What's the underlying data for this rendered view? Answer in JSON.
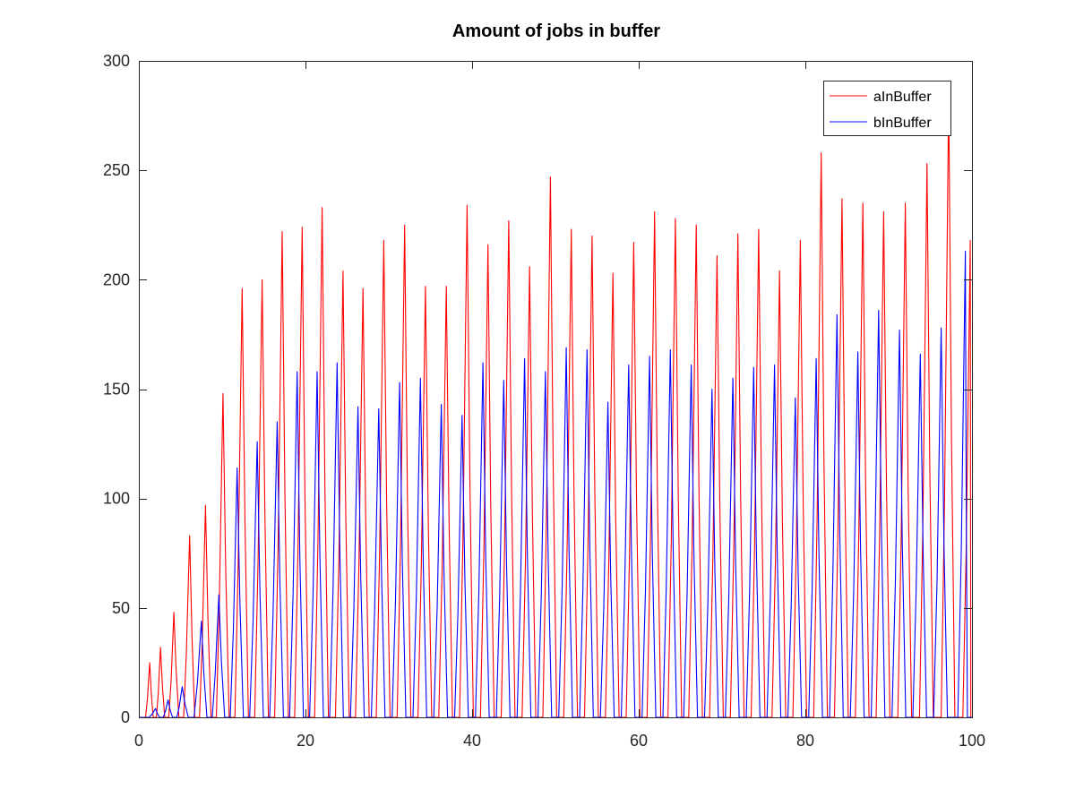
{
  "chart_data": {
    "type": "line",
    "title": "Amount of jobs in buffer",
    "xlabel": "",
    "ylabel": "",
    "xlim": [
      0,
      100
    ],
    "ylim": [
      0,
      300
    ],
    "x_ticks": [
      0,
      20,
      40,
      60,
      80,
      100
    ],
    "y_ticks": [
      0,
      50,
      100,
      150,
      200,
      250,
      300
    ],
    "grid": false,
    "legend": "top-right",
    "series": [
      {
        "name": "aInBuffer",
        "color": "#ff0000",
        "peaks": [
          {
            "x": 1.3,
            "y": 25
          },
          {
            "x": 2.6,
            "y": 32
          },
          {
            "x": 4.2,
            "y": 48
          },
          {
            "x": 6.1,
            "y": 83
          },
          {
            "x": 8.0,
            "y": 97
          },
          {
            "x": 10.1,
            "y": 148
          },
          {
            "x": 12.4,
            "y": 196
          },
          {
            "x": 14.8,
            "y": 200
          },
          {
            "x": 17.2,
            "y": 222
          },
          {
            "x": 19.6,
            "y": 224
          },
          {
            "x": 22.0,
            "y": 233
          },
          {
            "x": 24.5,
            "y": 204
          },
          {
            "x": 26.9,
            "y": 196
          },
          {
            "x": 29.4,
            "y": 218
          },
          {
            "x": 31.9,
            "y": 225
          },
          {
            "x": 34.4,
            "y": 197
          },
          {
            "x": 36.9,
            "y": 197
          },
          {
            "x": 39.4,
            "y": 234
          },
          {
            "x": 41.9,
            "y": 216
          },
          {
            "x": 44.4,
            "y": 227
          },
          {
            "x": 46.9,
            "y": 206
          },
          {
            "x": 49.4,
            "y": 247
          },
          {
            "x": 51.9,
            "y": 223
          },
          {
            "x": 54.4,
            "y": 220
          },
          {
            "x": 56.9,
            "y": 203
          },
          {
            "x": 59.4,
            "y": 217
          },
          {
            "x": 61.9,
            "y": 231
          },
          {
            "x": 64.4,
            "y": 228
          },
          {
            "x": 66.9,
            "y": 225
          },
          {
            "x": 69.4,
            "y": 211
          },
          {
            "x": 71.9,
            "y": 221
          },
          {
            "x": 74.4,
            "y": 223
          },
          {
            "x": 76.9,
            "y": 204
          },
          {
            "x": 79.4,
            "y": 218
          },
          {
            "x": 81.9,
            "y": 258
          },
          {
            "x": 84.4,
            "y": 237
          },
          {
            "x": 86.9,
            "y": 235
          },
          {
            "x": 89.4,
            "y": 231
          },
          {
            "x": 92.0,
            "y": 235
          },
          {
            "x": 94.6,
            "y": 253
          },
          {
            "x": 97.2,
            "y": 285
          },
          {
            "x": 99.8,
            "y": 218
          }
        ]
      },
      {
        "name": "bInBuffer",
        "color": "#0000ff",
        "peaks": [
          {
            "x": 2.0,
            "y": 4
          },
          {
            "x": 3.5,
            "y": 8
          },
          {
            "x": 5.2,
            "y": 14
          },
          {
            "x": 7.5,
            "y": 44
          },
          {
            "x": 9.6,
            "y": 56
          },
          {
            "x": 11.8,
            "y": 114
          },
          {
            "x": 14.2,
            "y": 126
          },
          {
            "x": 16.6,
            "y": 135
          },
          {
            "x": 19.0,
            "y": 158
          },
          {
            "x": 21.4,
            "y": 158
          },
          {
            "x": 23.8,
            "y": 162
          },
          {
            "x": 26.3,
            "y": 142
          },
          {
            "x": 28.8,
            "y": 141
          },
          {
            "x": 31.3,
            "y": 153
          },
          {
            "x": 33.8,
            "y": 155
          },
          {
            "x": 36.3,
            "y": 143
          },
          {
            "x": 38.8,
            "y": 138
          },
          {
            "x": 41.3,
            "y": 162
          },
          {
            "x": 43.8,
            "y": 154
          },
          {
            "x": 46.3,
            "y": 164
          },
          {
            "x": 48.8,
            "y": 158
          },
          {
            "x": 51.3,
            "y": 169
          },
          {
            "x": 53.8,
            "y": 168
          },
          {
            "x": 56.3,
            "y": 144
          },
          {
            "x": 58.8,
            "y": 161
          },
          {
            "x": 61.3,
            "y": 165
          },
          {
            "x": 63.8,
            "y": 168
          },
          {
            "x": 66.3,
            "y": 161
          },
          {
            "x": 68.8,
            "y": 150
          },
          {
            "x": 71.3,
            "y": 155
          },
          {
            "x": 73.8,
            "y": 160
          },
          {
            "x": 76.3,
            "y": 161
          },
          {
            "x": 78.8,
            "y": 146
          },
          {
            "x": 81.3,
            "y": 164
          },
          {
            "x": 83.8,
            "y": 184
          },
          {
            "x": 86.3,
            "y": 167
          },
          {
            "x": 88.8,
            "y": 186
          },
          {
            "x": 91.3,
            "y": 177
          },
          {
            "x": 93.8,
            "y": 166
          },
          {
            "x": 96.3,
            "y": 178
          },
          {
            "x": 99.2,
            "y": 213
          }
        ]
      }
    ]
  }
}
